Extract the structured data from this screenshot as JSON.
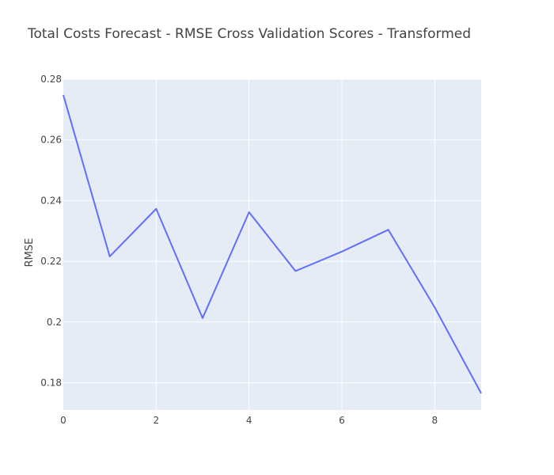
{
  "chart_data": {
    "type": "line",
    "title": "Total Costs Forecast - RMSE Cross Validation Scores - Transformed",
    "xlabel": "",
    "ylabel": "RMSE",
    "xlim": [
      0,
      9
    ],
    "ylim": [
      0.171,
      0.28
    ],
    "x_ticks": [
      0,
      2,
      4,
      6,
      8
    ],
    "y_ticks": [
      0.18,
      0.2,
      0.22,
      0.24,
      0.26,
      0.28
    ],
    "y_tick_labels": [
      "0.18",
      "0.2",
      "0.22",
      "0.24",
      "0.26",
      "0.28"
    ],
    "grid": true,
    "series": [
      {
        "x": [
          0,
          1,
          2,
          3,
          4,
          5,
          6,
          7,
          8,
          9
        ],
        "values": [
          0.2748,
          0.2216,
          0.2373,
          0.2013,
          0.2362,
          0.2168,
          0.2232,
          0.2304,
          0.2048,
          0.1765
        ],
        "color": "#636efa"
      }
    ],
    "colors": {
      "plot_bg": "#e5ecf6",
      "grid": "#ffffff",
      "line": "#636efa",
      "text": "#444444"
    }
  }
}
